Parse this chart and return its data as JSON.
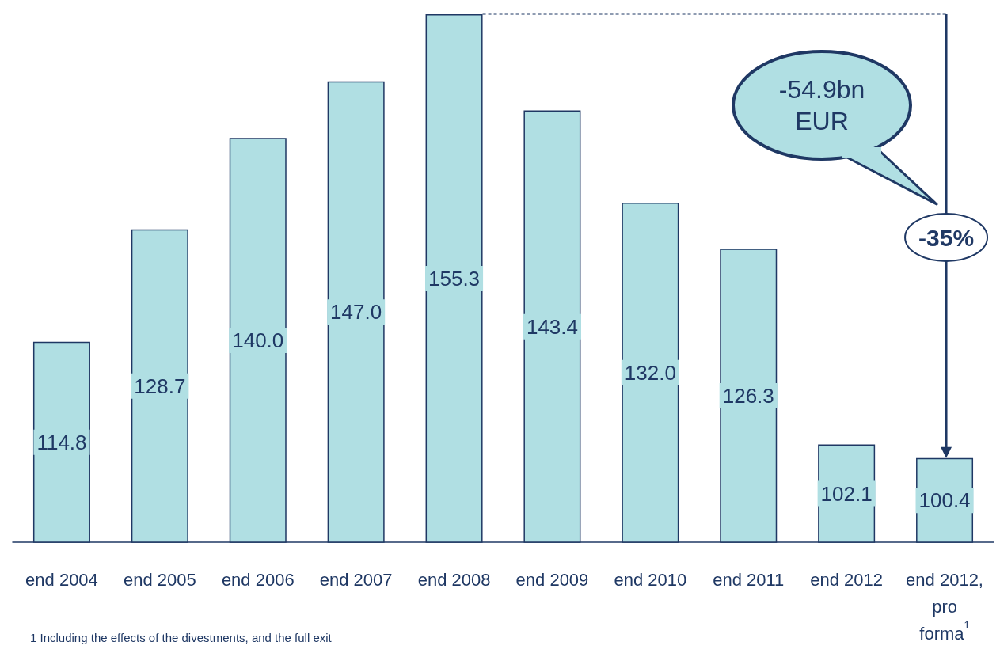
{
  "chart_data": {
    "type": "bar",
    "categories": [
      "end 2004",
      "end 2005",
      "end 2006",
      "end 2007",
      "end 2008",
      "end 2009",
      "end 2010",
      "end 2011",
      "end 2012",
      "end 2012,\npro\nforma$^{1}$"
    ],
    "values": [
      114.8,
      128.7,
      140.0,
      147.0,
      155.3,
      143.4,
      132.0,
      126.3,
      102.1,
      100.4
    ],
    "value_labels": [
      "114.8",
      "128.7",
      "140.0",
      "147.0",
      "155.3",
      "143.4",
      "132.0",
      "126.3",
      "102.1",
      "100.4"
    ],
    "color": "#b0dfe3",
    "ylim": [
      90,
      155.3
    ],
    "annotations": [
      "-54.9bn\nEUR",
      "-35%",
      "1   Including the effects of the divestments, and the full exit"
    ]
  }
}
